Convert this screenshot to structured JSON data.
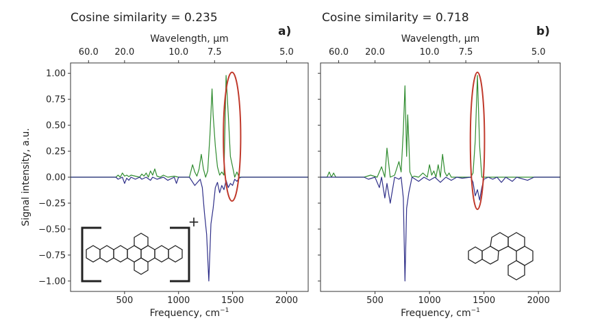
{
  "figure": {
    "panels": [
      {
        "cosine_text": "Cosine similarity = 0.235",
        "label": "a)"
      },
      {
        "cosine_text": "Cosine similarity = 0.718",
        "label": "b)"
      }
    ],
    "y_axis_label": "Signal intensity, a.u.",
    "x_axis_label": "Frequency, cm",
    "x_axis_label_sup": "−1",
    "top_axis_label": "Wavelength, µm",
    "colors": {
      "positive_line": "#2e8b2e",
      "negative_line": "#2e2e88",
      "highlight_ellipse": "#c0392b",
      "axes": "#333333"
    }
  },
  "chart_data": [
    {
      "type": "line",
      "panel": "a)",
      "title": "Cosine similarity = 0.235",
      "xlabel": "Frequency, cm−1",
      "ylabel": "Signal intensity, a.u.",
      "secondary_xlabel": "Wavelength, µm",
      "xlim": [
        0,
        2200
      ],
      "ylim": [
        -1.1,
        1.1
      ],
      "x_ticks": [
        500,
        1000,
        1500,
        2000
      ],
      "y_ticks": [
        -1.0,
        -0.75,
        -0.5,
        -0.25,
        0.0,
        0.25,
        0.5,
        0.75,
        1.0
      ],
      "y_tick_labels": [
        "−1.00",
        "−0.75",
        "−0.50",
        "−0.25",
        "0.00",
        "0.25",
        "0.50",
        "0.75",
        "1.00"
      ],
      "secondary_x_ticks": [
        {
          "label": "60.0",
          "wavelength_um": 60.0
        },
        {
          "label": "20.0",
          "wavelength_um": 20.0
        },
        {
          "label": "10.0",
          "wavelength_um": 10.0
        },
        {
          "label": "7.5",
          "wavelength_um": 7.5
        },
        {
          "label": "5.0",
          "wavelength_um": 5.0
        }
      ],
      "series": [
        {
          "name": "spectrum-positive",
          "color": "#2e8b2e",
          "x": [
            0,
            420,
            440,
            460,
            480,
            500,
            520,
            540,
            560,
            600,
            640,
            660,
            680,
            700,
            720,
            740,
            760,
            780,
            800,
            830,
            860,
            900,
            960,
            1000,
            1100,
            1130,
            1150,
            1170,
            1190,
            1210,
            1230,
            1250,
            1270,
            1290,
            1310,
            1320,
            1340,
            1360,
            1380,
            1400,
            1420,
            1440,
            1460,
            1480,
            1500,
            1520,
            1540,
            1560,
            1580,
            1600,
            2200
          ],
          "y": [
            0,
            0,
            0.02,
            0,
            0.04,
            0.01,
            0.02,
            0.005,
            0.02,
            0.01,
            0.0,
            0.03,
            0.01,
            0.04,
            0.0,
            0.06,
            0.02,
            0.08,
            0.01,
            0.0,
            0.02,
            0.0,
            0.01,
            0.0,
            0.0,
            0.12,
            0.05,
            0.01,
            0.08,
            0.22,
            0.08,
            0.0,
            0.06,
            0.4,
            0.85,
            0.6,
            0.3,
            0.1,
            0.02,
            0.05,
            0.02,
            0.98,
            0.6,
            0.2,
            0.1,
            0.0,
            0.05,
            0.0,
            0.0,
            0.0,
            0.0
          ]
        },
        {
          "name": "spectrum-negative",
          "color": "#2e2e88",
          "x": [
            0,
            420,
            440,
            480,
            500,
            520,
            540,
            560,
            600,
            640,
            660,
            700,
            740,
            760,
            800,
            860,
            900,
            960,
            980,
            1000,
            1100,
            1150,
            1200,
            1220,
            1240,
            1260,
            1280,
            1300,
            1320,
            1340,
            1360,
            1380,
            1400,
            1420,
            1440,
            1460,
            1480,
            1500,
            1520,
            1540,
            1560,
            1580,
            1600,
            2200
          ],
          "y": [
            0,
            0,
            -0.02,
            0.0,
            -0.06,
            -0.01,
            -0.03,
            0.0,
            -0.02,
            0.0,
            -0.02,
            0.0,
            -0.03,
            0.0,
            -0.02,
            0.0,
            -0.03,
            0.0,
            -0.06,
            0.0,
            0.0,
            -0.08,
            -0.02,
            -0.1,
            -0.35,
            -0.55,
            -1.0,
            -0.45,
            -0.3,
            -0.1,
            -0.05,
            -0.15,
            -0.08,
            -0.12,
            -0.03,
            -0.1,
            -0.06,
            -0.08,
            -0.02,
            -0.04,
            -0.01,
            0.0,
            0.0,
            0.0
          ]
        }
      ],
      "highlight": {
        "shape": "ellipse",
        "center_x": 1495,
        "center_y": 0.39,
        "half_width_x": 80,
        "half_height_y": 0.62
      },
      "inset": {
        "kind": "molecule-structure",
        "charge_mark": "+"
      }
    },
    {
      "type": "line",
      "panel": "b)",
      "title": "Cosine similarity = 0.718",
      "xlabel": "Frequency, cm−1",
      "ylabel": "Signal intensity, a.u.",
      "secondary_xlabel": "Wavelength, µm",
      "xlim": [
        0,
        2200
      ],
      "ylim": [
        -1.1,
        1.1
      ],
      "x_ticks": [
        500,
        1000,
        1500,
        2000
      ],
      "y_ticks": [
        -1.0,
        -0.75,
        -0.5,
        -0.25,
        0.0,
        0.25,
        0.5,
        0.75,
        1.0
      ],
      "secondary_x_ticks": [
        {
          "label": "60.0",
          "wavelength_um": 60.0
        },
        {
          "label": "20.0",
          "wavelength_um": 20.0
        },
        {
          "label": "10.0",
          "wavelength_um": 10.0
        },
        {
          "label": "7.5",
          "wavelength_um": 7.5
        },
        {
          "label": "5.0",
          "wavelength_um": 5.0
        }
      ],
      "series": [
        {
          "name": "spectrum-positive",
          "color": "#2e8b2e",
          "x": [
            0,
            60,
            80,
            100,
            120,
            140,
            160,
            400,
            460,
            520,
            560,
            590,
            610,
            640,
            680,
            720,
            740,
            760,
            775,
            790,
            800,
            810,
            820,
            840,
            860,
            900,
            940,
            980,
            1000,
            1020,
            1040,
            1060,
            1080,
            1100,
            1120,
            1140,
            1160,
            1180,
            1200,
            1300,
            1380,
            1400,
            1420,
            1440,
            1460,
            1480,
            1500,
            2200
          ],
          "y": [
            0,
            0,
            0.05,
            0,
            0.04,
            0,
            0.0,
            0.0,
            0.02,
            0.0,
            0.1,
            0.0,
            0.28,
            0.0,
            0.02,
            0.15,
            0.05,
            0.45,
            0.88,
            0.2,
            0.6,
            0.35,
            0.05,
            0.0,
            0.01,
            0.0,
            0.04,
            0.0,
            0.12,
            0.02,
            0.06,
            0.0,
            0.12,
            0.0,
            0.22,
            0.05,
            0.01,
            0.04,
            0.0,
            0.0,
            0.0,
            0.04,
            0.35,
            0.98,
            0.3,
            0.0,
            0.0,
            0.0
          ]
        },
        {
          "name": "spectrum-negative",
          "color": "#2e2e88",
          "x": [
            0,
            400,
            440,
            500,
            540,
            560,
            590,
            610,
            640,
            680,
            720,
            740,
            760,
            775,
            790,
            810,
            840,
            900,
            950,
            1000,
            1050,
            1100,
            1150,
            1200,
            1250,
            1300,
            1380,
            1400,
            1420,
            1440,
            1460,
            1480,
            1500,
            1540,
            1580,
            1620,
            1660,
            1700,
            1760,
            1800,
            1900,
            1960,
            2000,
            2200
          ],
          "y": [
            0,
            0,
            -0.02,
            0.0,
            -0.1,
            0.0,
            -0.2,
            -0.06,
            -0.25,
            0.0,
            -0.02,
            0.0,
            -0.2,
            -1.0,
            -0.3,
            -0.15,
            0.0,
            -0.04,
            0.0,
            -0.03,
            0.0,
            -0.05,
            0.0,
            -0.03,
            0.0,
            -0.01,
            0.0,
            -0.05,
            -0.18,
            -0.12,
            -0.22,
            -0.1,
            -0.02,
            0.0,
            -0.02,
            0.0,
            -0.05,
            0.0,
            -0.04,
            0.0,
            -0.03,
            0.0,
            0.0,
            0.0
          ]
        }
      ],
      "highlight": {
        "shape": "ellipse",
        "center_x": 1440,
        "center_y": 0.35,
        "half_width_x": 65,
        "half_height_y": 0.66
      },
      "inset": {
        "kind": "molecule-structure"
      }
    }
  ]
}
